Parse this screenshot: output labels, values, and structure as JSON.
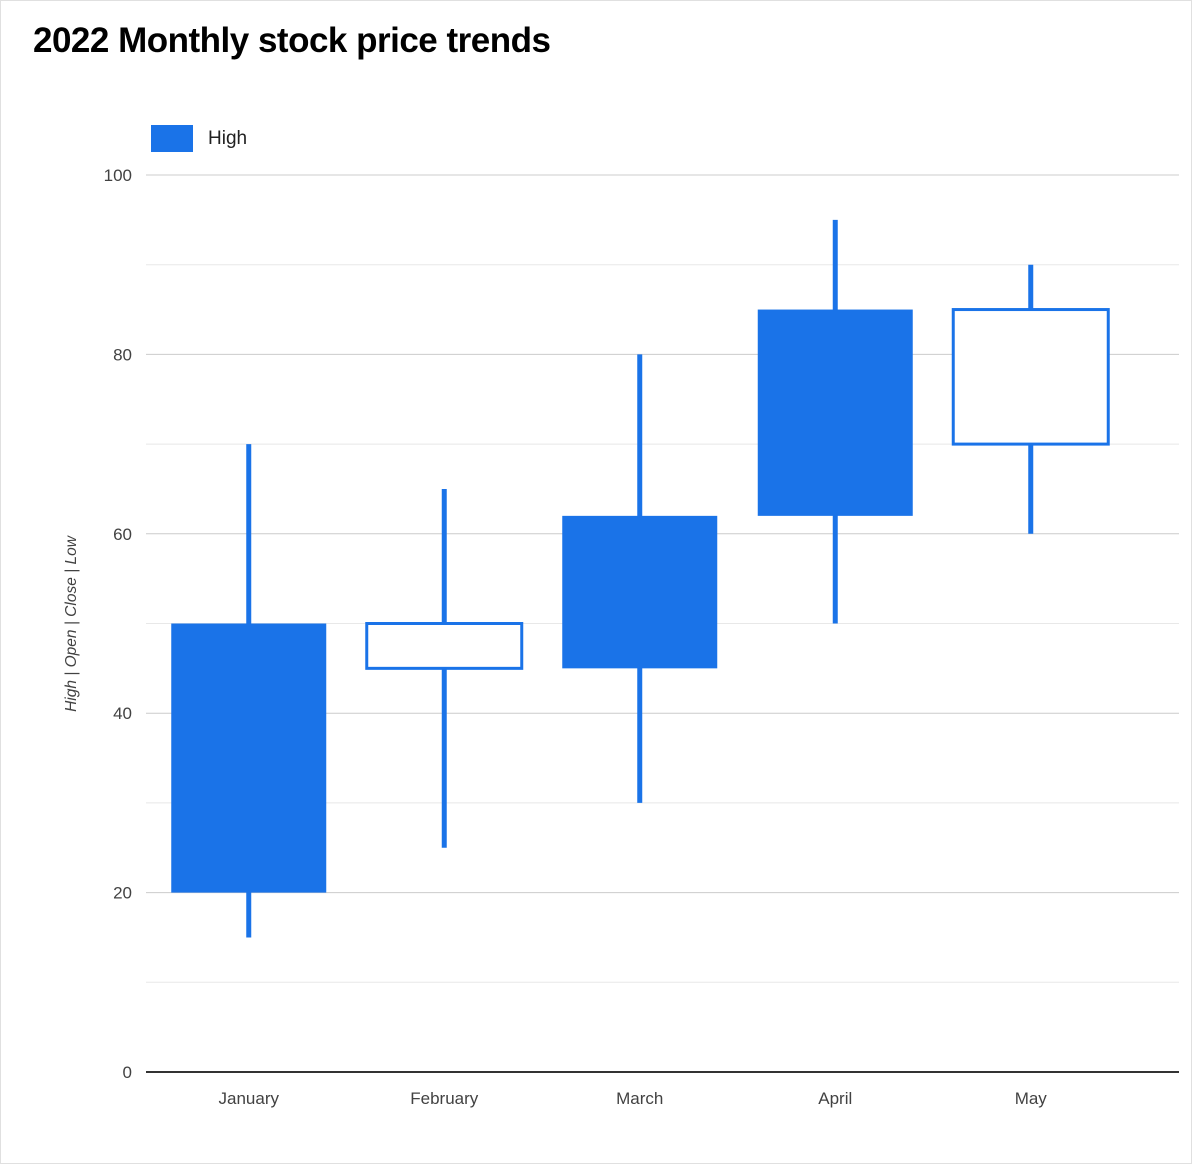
{
  "page": {
    "background": "#ffffff",
    "border_color": "#e0e0e0"
  },
  "chart_data": {
    "type": "candlestick",
    "title": "2022 Monthly stock price trends",
    "legend": {
      "label": "High",
      "position": "top"
    },
    "ylabel": "High | Open | Close | Low",
    "xlabel": "",
    "categories": [
      "January",
      "February",
      "March",
      "April",
      "May"
    ],
    "ylim": [
      0,
      100
    ],
    "y_major_ticks": [
      0,
      20,
      40,
      60,
      80,
      100
    ],
    "y_minor_ticks": [
      10,
      30,
      50,
      70,
      90
    ],
    "grid": true,
    "series": [
      {
        "name": "High",
        "color": "#1a73e8",
        "points": [
          {
            "category": "January",
            "low": 15,
            "open": 50,
            "close": 20,
            "high": 70,
            "direction": "falling"
          },
          {
            "category": "February",
            "low": 25,
            "open": 45,
            "close": 50,
            "high": 65,
            "direction": "rising"
          },
          {
            "category": "March",
            "low": 30,
            "open": 62,
            "close": 45,
            "high": 80,
            "direction": "falling"
          },
          {
            "category": "April",
            "low": 50,
            "open": 85,
            "close": 62,
            "high": 95,
            "direction": "falling"
          },
          {
            "category": "May",
            "low": 60,
            "open": 70,
            "close": 85,
            "high": 90,
            "direction": "rising"
          }
        ]
      }
    ],
    "colors": {
      "candle_fill": "#1a73e8",
      "rising_fill": "#ffffff",
      "grid_major": "#cccccc",
      "grid_minor": "#e8e8e8",
      "axis_line": "#333333",
      "tick_label": "#424242",
      "axis_title": "#424242",
      "title": "#000000",
      "legend_label": "#212121"
    }
  }
}
